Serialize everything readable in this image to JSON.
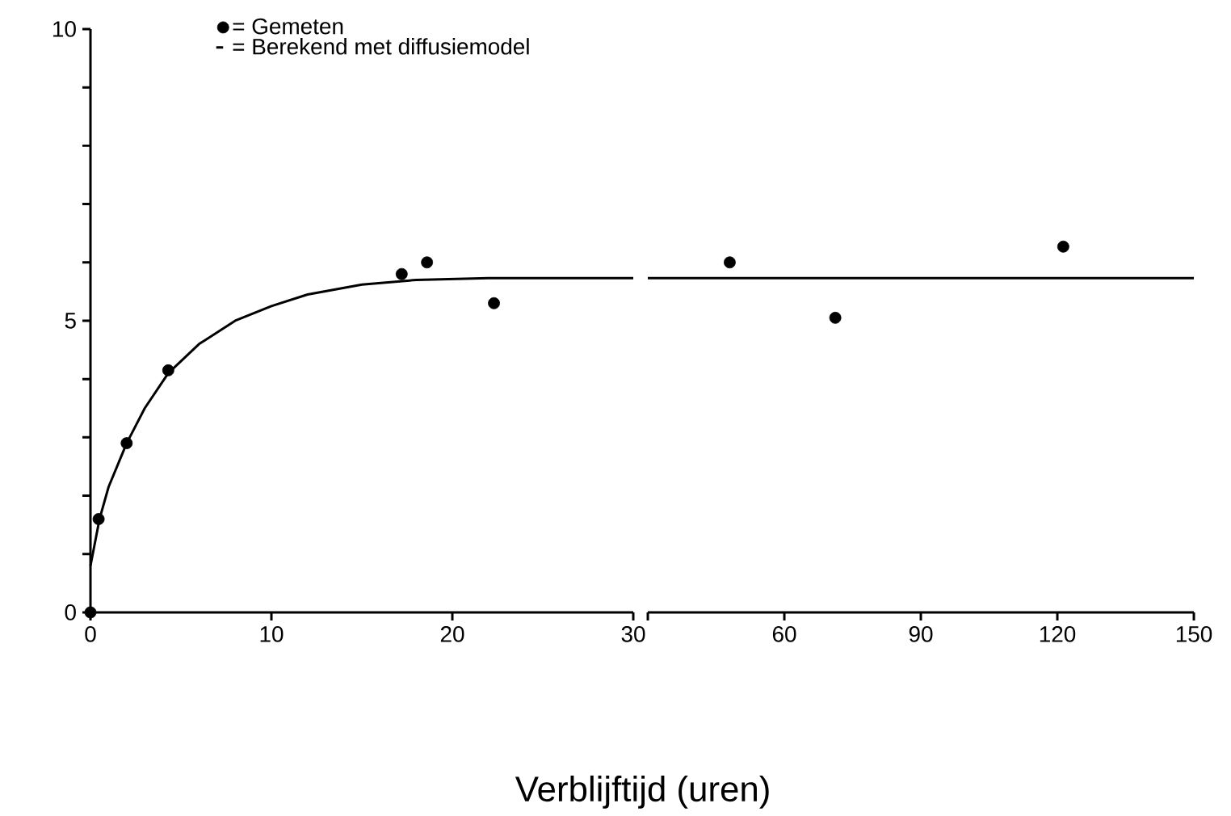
{
  "chart_data": [
    {
      "type": "scatter",
      "xlabel": "Verblijftijd (uren)",
      "xlim": [
        0,
        30
      ],
      "ylim": [
        0,
        10
      ],
      "xticks": [
        0,
        10,
        20,
        30
      ],
      "yticks": [
        0,
        {
          "value": 1,
          "label": null
        },
        {
          "value": 2,
          "label": null
        },
        {
          "value": 3,
          "label": null
        },
        {
          "value": 4,
          "label": null
        },
        5,
        {
          "value": 6,
          "label": null
        },
        {
          "value": 7,
          "label": null
        },
        {
          "value": 8,
          "label": null
        },
        {
          "value": 9,
          "label": null
        },
        10
      ],
      "legend": "top",
      "grid": false,
      "series": [
        {
          "type": "scatter",
          "name": "= Gemeten",
          "color": "#000000",
          "marker": "circle",
          "x": [
            0,
            0.45,
            2.0,
            4.3,
            17.2,
            18.6,
            22.3
          ],
          "values": [
            0,
            1.6,
            2.9,
            4.15,
            5.8,
            6.0,
            5.3
          ]
        },
        {
          "type": "line",
          "name": "= Berekend met diffusiemodel",
          "color": "#000000",
          "marker": "none",
          "line_style": "solid",
          "x": [
            0,
            0.5,
            1,
            2,
            3,
            4.3,
            6,
            8,
            10,
            12,
            15,
            18,
            22,
            30
          ],
          "values": [
            0.8,
            1.6,
            2.15,
            2.9,
            3.5,
            4.1,
            4.6,
            5.0,
            5.25,
            5.45,
            5.62,
            5.7,
            5.73,
            5.73
          ]
        }
      ]
    },
    {
      "type": "scatter",
      "xlim": [
        30,
        150
      ],
      "ylim": [
        0,
        10
      ],
      "xticks": [
        {
          "value": 30,
          "label": null
        },
        60,
        90,
        120,
        150
      ],
      "tick_labels": "x",
      "grid": false,
      "series": [
        {
          "type": "scatter",
          "color": "#000000",
          "marker": "circle",
          "x": [
            48,
            71.2,
            121.3
          ],
          "values": [
            6.0,
            5.05,
            6.27
          ]
        },
        {
          "type": "line",
          "color": "#000000",
          "marker": "none",
          "line_style": "solid",
          "x": [
            30,
            150
          ],
          "values": [
            5.73,
            5.73
          ]
        }
      ]
    }
  ]
}
